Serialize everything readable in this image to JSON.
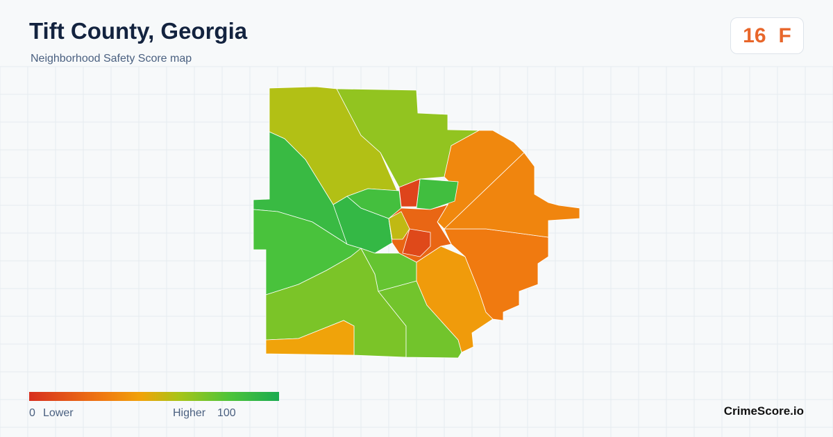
{
  "header": {
    "title": "Tift County, Georgia",
    "subtitle": "Neighborhood Safety Score map"
  },
  "badge": {
    "score": 16,
    "grade": "F"
  },
  "legend": {
    "min": 0,
    "min_label": "Lower",
    "max_label": "Higher",
    "max": 100
  },
  "regions": [
    {
      "score": 58
    },
    {
      "score": 65
    },
    {
      "score": 88
    },
    {
      "score": 82
    },
    {
      "score": 90
    },
    {
      "score": 70
    },
    {
      "score": 45
    },
    {
      "score": 72
    },
    {
      "score": 75
    },
    {
      "score": 42
    },
    {
      "score": 30
    },
    {
      "score": 35
    },
    {
      "score": 34
    },
    {
      "score": 85
    },
    {
      "score": 84
    },
    {
      "score": 8
    },
    {
      "score": 22
    },
    {
      "score": 10
    },
    {
      "score": 55
    }
  ],
  "brand": "CrimeScore.io"
}
